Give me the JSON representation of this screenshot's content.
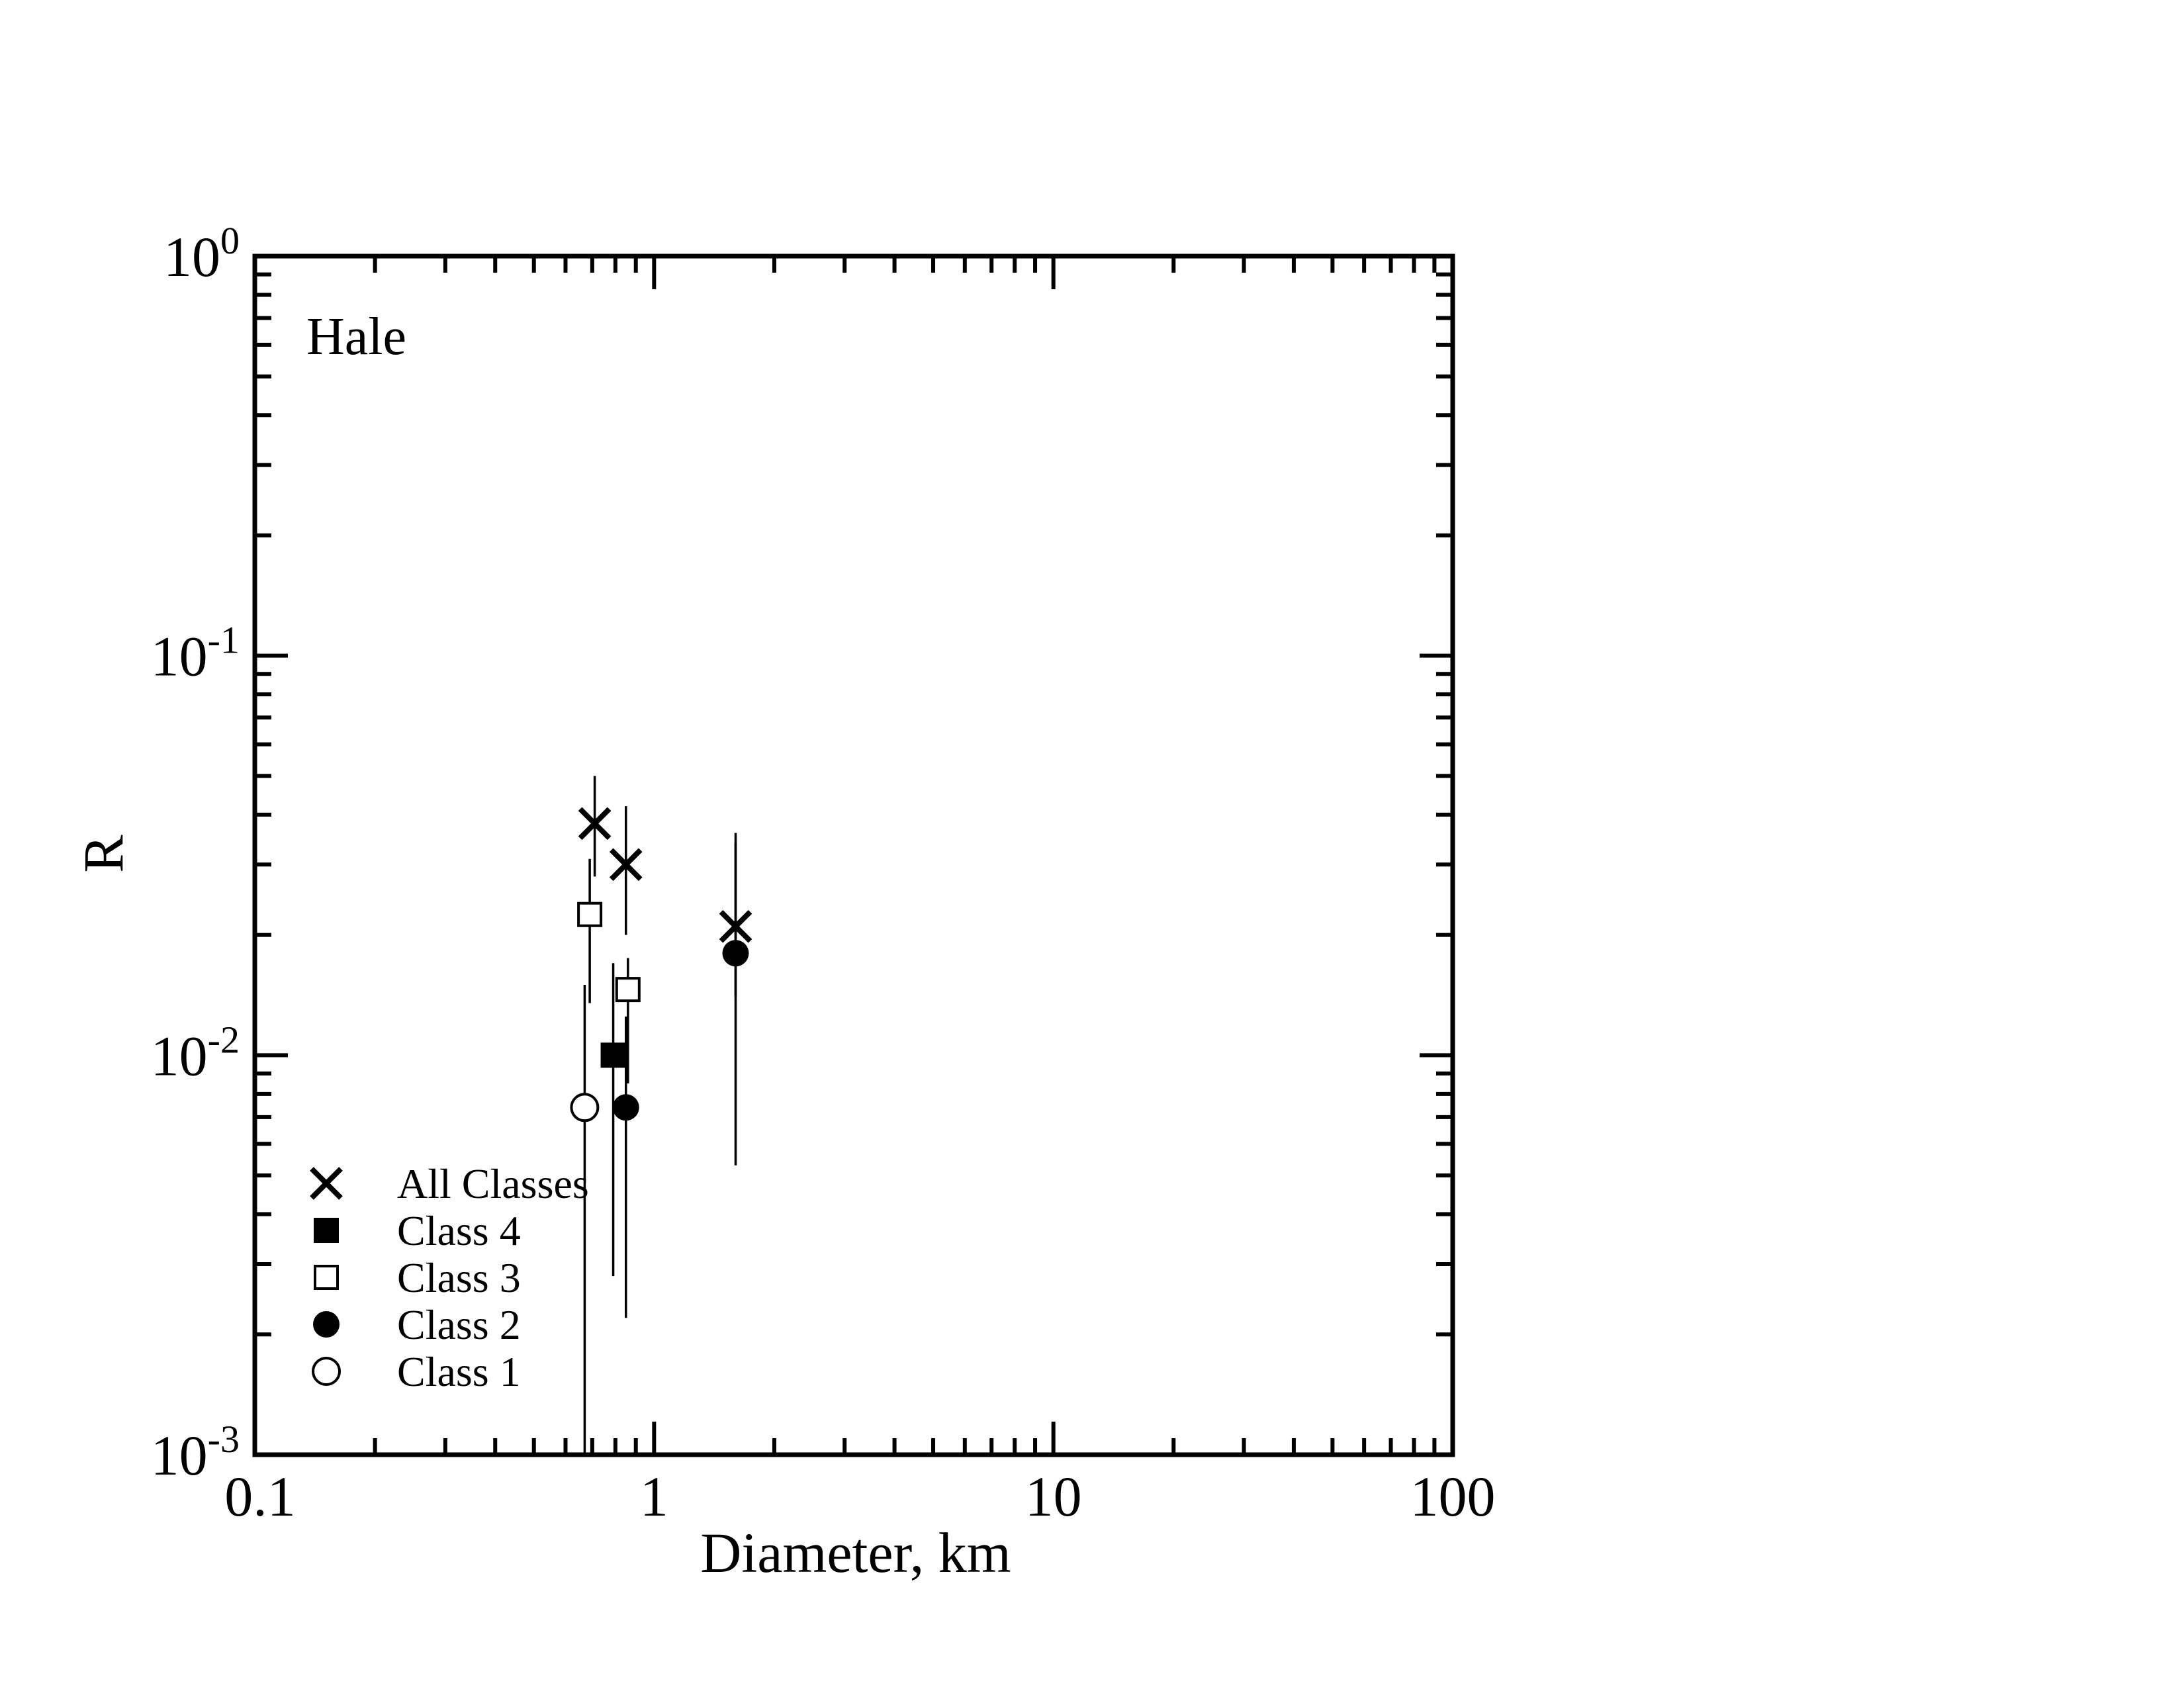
{
  "chart_data": {
    "type": "scatter",
    "annotation": "Hale",
    "xlabel": "Diameter, km",
    "ylabel": "R",
    "x_scale": "log",
    "y_scale": "log",
    "xlim": [
      0.1,
      100
    ],
    "ylim": [
      0.001,
      1
    ],
    "grid": false,
    "legend_position": "bottom-left",
    "x_ticks": [
      {
        "value": 0.1,
        "label": "0.1"
      },
      {
        "value": 1,
        "label": "1"
      },
      {
        "value": 10,
        "label": "10"
      },
      {
        "value": 100,
        "label": "100"
      }
    ],
    "y_ticks": [
      {
        "value": 1,
        "base": "10",
        "exp": "0"
      },
      {
        "value": 0.1,
        "base": "10",
        "exp": "-1"
      },
      {
        "value": 0.01,
        "base": "10",
        "exp": "-2"
      },
      {
        "value": 0.001,
        "base": "10",
        "exp": "-3"
      }
    ],
    "series": [
      {
        "name": "All Classes",
        "marker": "x",
        "points": [
          {
            "x": 0.71,
            "y": 0.038,
            "ylo": 0.028,
            "yhi": 0.05
          },
          {
            "x": 0.85,
            "y": 0.03,
            "ylo": 0.02,
            "yhi": 0.042
          },
          {
            "x": 1.6,
            "y": 0.021,
            "ylo": 0.014,
            "yhi": 0.036
          }
        ]
      },
      {
        "name": "Class 4",
        "marker": "square-filled",
        "points": [
          {
            "x": 0.79,
            "y": 0.01,
            "ylo": 0.0028,
            "yhi": 0.017
          }
        ]
      },
      {
        "name": "Class 3",
        "marker": "square-open",
        "points": [
          {
            "x": 0.69,
            "y": 0.0225,
            "ylo": 0.0135,
            "yhi": 0.031
          },
          {
            "x": 0.86,
            "y": 0.0146,
            "ylo": 0.0085,
            "yhi": 0.0175
          }
        ]
      },
      {
        "name": "Class 2",
        "marker": "circle-filled",
        "points": [
          {
            "x": 0.85,
            "y": 0.0074,
            "ylo": 0.0022,
            "yhi": 0.0125
          },
          {
            "x": 1.6,
            "y": 0.018,
            "ylo": 0.0053,
            "yhi": 0.034
          }
        ]
      },
      {
        "name": "Class 1",
        "marker": "circle-open",
        "points": [
          {
            "x": 0.67,
            "y": 0.0074,
            "ylo": 0.001,
            "yhi": 0.015
          }
        ]
      }
    ]
  }
}
